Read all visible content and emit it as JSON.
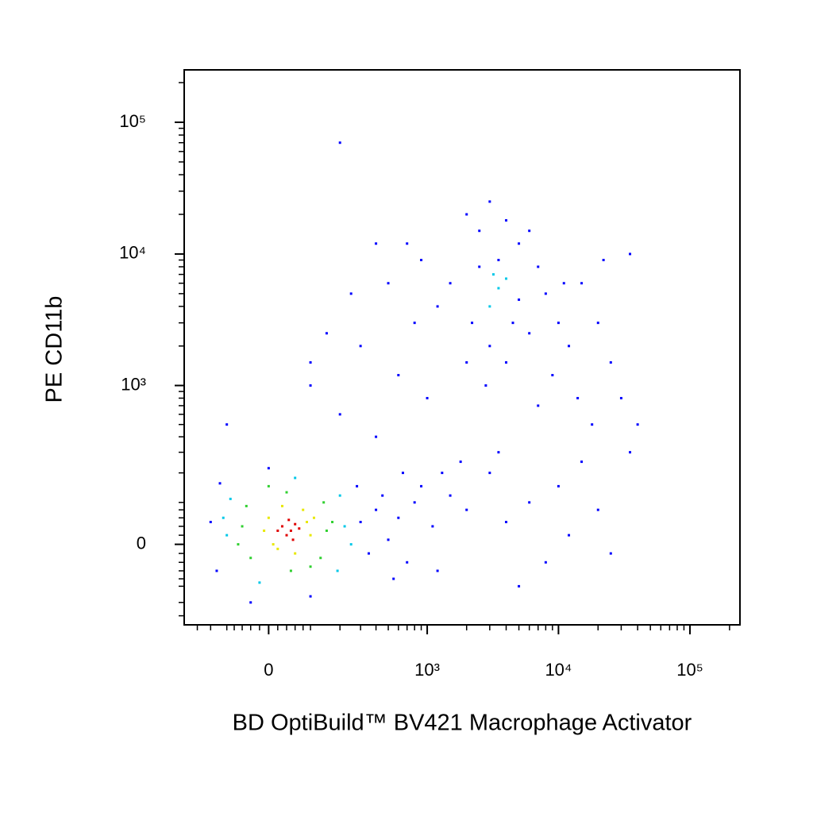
{
  "chart_data": {
    "type": "scatter",
    "x_label": "BD OptiBuild™ BV421 Macrophage Activator",
    "y_label": "PE CD11b",
    "xscale": "biexponential",
    "yscale": "biexponential",
    "xlim": [
      -260,
      240000
    ],
    "ylim": [
      -240,
      250000
    ],
    "xticks": [
      0,
      {
        "value": 1000,
        "label": "10³"
      },
      {
        "value": 10000,
        "label": "10⁴"
      },
      {
        "value": 100000,
        "label": "10⁵"
      }
    ],
    "yticks": [
      0,
      {
        "value": 1000,
        "label": "10³"
      },
      {
        "value": 10000,
        "label": "10⁴"
      },
      {
        "value": 100000,
        "label": "10⁵"
      }
    ],
    "xminorticks": [
      -200,
      -150,
      -100,
      -80,
      -60,
      -40,
      -20,
      20,
      40,
      60,
      80,
      100,
      200,
      300,
      400,
      500,
      600,
      700,
      800,
      900,
      2000,
      3000,
      4000,
      5000,
      6000,
      7000,
      8000,
      9000,
      20000,
      30000,
      40000,
      50000,
      60000,
      70000,
      80000,
      90000,
      200000
    ],
    "yminorticks": [
      -200,
      -150,
      -100,
      -80,
      -60,
      -40,
      -20,
      20,
      40,
      60,
      80,
      100,
      200,
      300,
      400,
      500,
      600,
      700,
      800,
      900,
      2000,
      3000,
      4000,
      5000,
      6000,
      7000,
      8000,
      9000,
      20000,
      30000,
      40000,
      50000,
      60000,
      70000,
      80000,
      90000,
      200000
    ],
    "series": [
      {
        "color": "#0000ff",
        "x": [
          -150,
          -130,
          300,
          350,
          280,
          -120,
          0,
          100,
          -40,
          400,
          450,
          500,
          600,
          700,
          800,
          900,
          1100,
          1300,
          1500,
          1800,
          2000,
          650,
          1200,
          550,
          2500,
          3500,
          5000,
          4500,
          6000,
          8000,
          10000,
          12000,
          15000,
          20000,
          25000,
          30000,
          2200,
          2000,
          2800,
          4000,
          7000,
          9000,
          14000,
          18000,
          2500,
          4000,
          6000,
          3000,
          5000,
          7000,
          11000,
          22000,
          35000,
          1500,
          1200,
          2000,
          3000,
          3000,
          4000,
          6000,
          8000,
          10000,
          15000,
          20000,
          25000,
          35000,
          40000,
          5000,
          12000,
          3500,
          100,
          200,
          300,
          400,
          150,
          600,
          800,
          1000,
          200,
          250,
          500,
          700,
          400,
          900,
          -100,
          100
        ],
        "y": [
          50,
          -60,
          50,
          -20,
          150,
          160,
          220,
          -130,
          -150,
          80,
          120,
          10,
          60,
          -40,
          100,
          150,
          40,
          200,
          120,
          250,
          80,
          200,
          -60,
          -80,
          8000,
          9000,
          12000,
          3000,
          2500,
          5000,
          3000,
          2000,
          6000,
          3000,
          1500,
          800,
          3000,
          1500,
          1000,
          1500,
          700,
          1200,
          800,
          500,
          15000,
          18000,
          15000,
          2000,
          4500,
          8000,
          6000,
          9000,
          10000,
          6000,
          4000,
          20000,
          25000,
          200,
          50,
          100,
          -40,
          150,
          250,
          80,
          -20,
          300,
          500,
          -100,
          20,
          300,
          1000,
          600,
          2000,
          400,
          2500,
          1200,
          3000,
          800,
          70000,
          5000,
          6000,
          12000,
          12000,
          9000,
          500,
          1500
        ]
      },
      {
        "color": "#00c8e8",
        "x": [
          -100,
          220,
          -90,
          200,
          60,
          -20,
          190,
          -110,
          3500,
          4000,
          3000,
          250,
          3200
        ],
        "y": [
          20,
          40,
          110,
          120,
          180,
          -90,
          -60,
          60,
          5500,
          6500,
          4000,
          0,
          7000
        ]
      },
      {
        "color": "#30d030",
        "x": [
          -60,
          150,
          40,
          -40,
          140,
          -50,
          50,
          170,
          0,
          100,
          -70,
          130
        ],
        "y": [
          40,
          30,
          130,
          -30,
          100,
          90,
          -60,
          50,
          150,
          -50,
          0,
          -30
        ]
      },
      {
        "color": "#e8e800",
        "x": [
          0,
          90,
          20,
          100,
          -10,
          80,
          30,
          60,
          110,
          10
        ],
        "y": [
          60,
          50,
          -10,
          20,
          30,
          80,
          90,
          -20,
          60,
          0
        ]
      },
      {
        "color": "#e00000",
        "x": [
          30,
          50,
          60,
          40,
          70,
          45,
          20,
          55
        ],
        "y": [
          40,
          30,
          45,
          20,
          35,
          55,
          30,
          10
        ]
      }
    ]
  }
}
